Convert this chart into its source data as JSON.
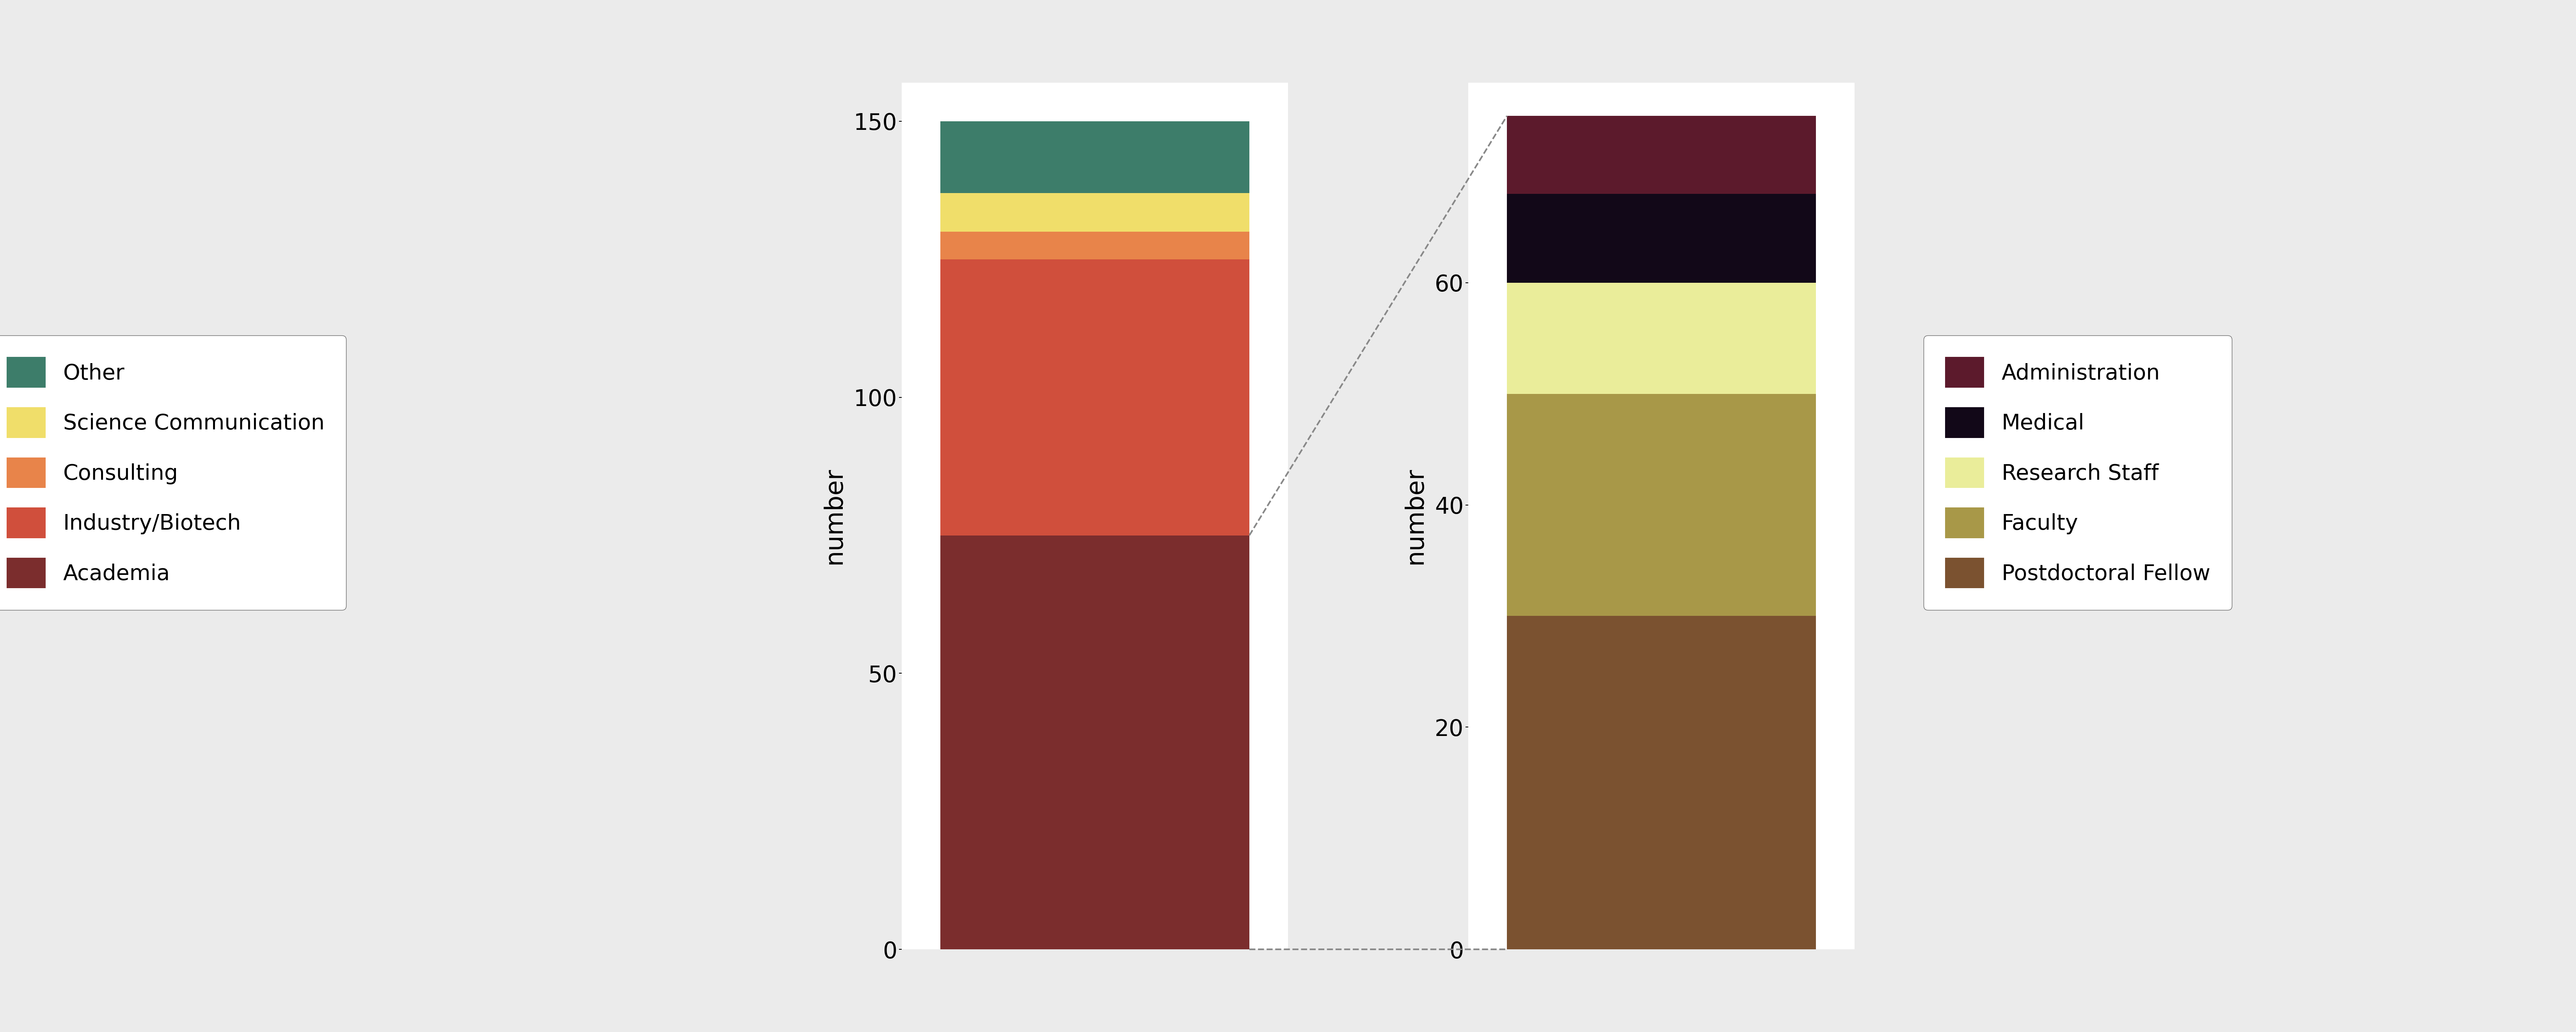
{
  "left_bar": {
    "categories": [
      "Academia",
      "Industry/Biotech",
      "Consulting",
      "Science Communication",
      "Other"
    ],
    "values": [
      75,
      50,
      5,
      7,
      13
    ],
    "colors": [
      "#7B2D2D",
      "#D04F3C",
      "#E8844A",
      "#F0DE6A",
      "#3D7D6A"
    ]
  },
  "right_bar": {
    "categories": [
      "Postdoctoral Fellow",
      "Faculty",
      "Research Staff",
      "Medical",
      "Administration"
    ],
    "values": [
      30,
      20,
      10,
      8,
      7
    ],
    "colors": [
      "#7B5230",
      "#A89848",
      "#EAED9A",
      "#120818",
      "#5C1A2C"
    ]
  },
  "left_ylim": [
    0,
    157
  ],
  "right_ylim": [
    0,
    78
  ],
  "left_yticks": [
    0,
    50,
    100,
    150
  ],
  "right_yticks": [
    0,
    20,
    40,
    60
  ],
  "ylabel": "number",
  "background_color": "#EBEBEB",
  "plot_bg_color": "#FFFFFF",
  "font_size": 42,
  "legend_font_size": 40
}
